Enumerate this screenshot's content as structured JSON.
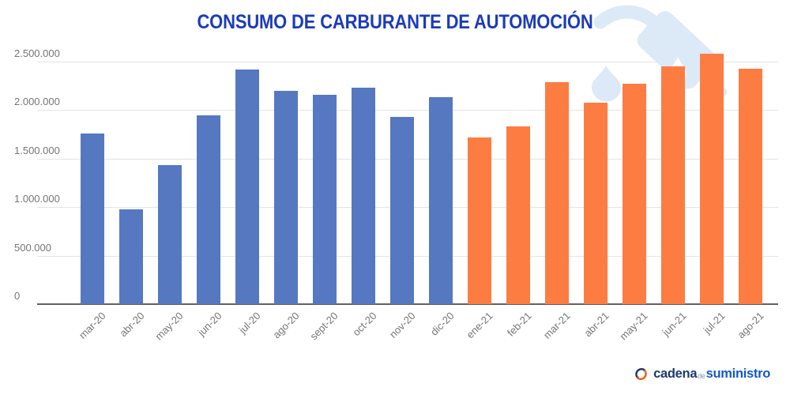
{
  "chart": {
    "title": "CONSUMO DE CARBURANTE DE AUTOMOCIÓN",
    "title_color": "#1b3bbb"
  },
  "chart_data": {
    "type": "bar",
    "title": "CONSUMO DE CARBURANTE DE AUTOMOCIÓN",
    "categories": [
      "mar-20",
      "abr-20",
      "may-20",
      "jun-20",
      "jul-20",
      "ago-20",
      "sept-20",
      "oct-20",
      "nov-20",
      "dic-20",
      "ene-21",
      "feb-21",
      "mar-21",
      "abr-21",
      "may-21",
      "jun-21",
      "jul-21",
      "ago-21"
    ],
    "values": [
      1760000,
      980000,
      1430000,
      1950000,
      2420000,
      2200000,
      2160000,
      2230000,
      1930000,
      2130000,
      1720000,
      1830000,
      2290000,
      2080000,
      2270000,
      2450000,
      2580000,
      2430000
    ],
    "group_of_bar": [
      "2020",
      "2020",
      "2020",
      "2020",
      "2020",
      "2020",
      "2020",
      "2020",
      "2020",
      "2020",
      "2021",
      "2021",
      "2021",
      "2021",
      "2021",
      "2021",
      "2021",
      "2021"
    ],
    "group_colors": {
      "2020": "#5578c1",
      "2021": "#fd7c42"
    },
    "xlabel": "",
    "ylabel": "",
    "ylim": [
      0,
      2500000
    ],
    "yticks": [
      0,
      500000,
      1000000,
      1500000,
      2000000,
      2500000
    ],
    "ytick_labels": [
      "0",
      "500.000",
      "1.000.000",
      "1.500.000",
      "2.000.000",
      "2.500.000"
    ],
    "grid": true,
    "legend": false,
    "axis_text_color": "#757575",
    "gridline_color": "#e4e4e4",
    "baseline_color": "#616161"
  },
  "watermark": {
    "color": "#dce9f6"
  },
  "logo": {
    "cadena": "cadena",
    "de": "de",
    "suministro": "suministro",
    "navy": "#1c3a6d",
    "blue": "#1458c8",
    "gray": "#8a97ad",
    "orange": "#e8630f"
  }
}
